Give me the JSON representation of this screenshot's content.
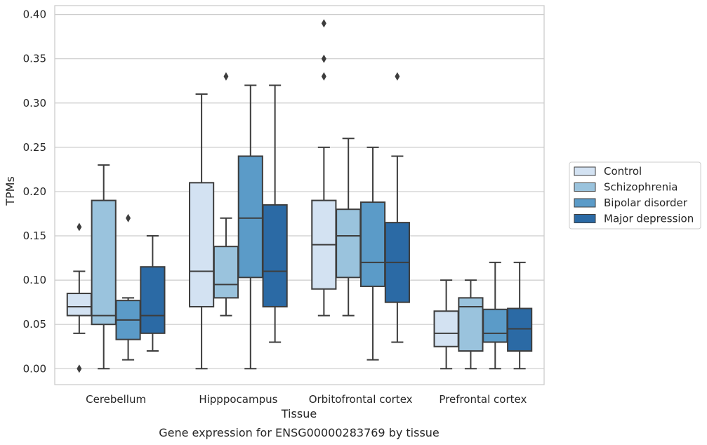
{
  "chart_data": {
    "type": "box",
    "xlabel": "Tissue",
    "ylabel": "TPMs",
    "caption": "Gene expression for ENSG00000283769 by tissue",
    "ylim": [
      -0.018,
      0.41
    ],
    "yticks": [
      "0.00",
      "0.05",
      "0.10",
      "0.15",
      "0.20",
      "0.25",
      "0.30",
      "0.35",
      "0.40"
    ],
    "grid": "horizontal",
    "legend_position": "right",
    "categories": [
      "Cerebellum",
      "Hipppocampus",
      "Orbitofrontal cortex",
      "Prefrontal cortex"
    ],
    "series": [
      {
        "name": "Control",
        "color": "#d3e2f2",
        "boxes": [
          {
            "whislo": 0.04,
            "q1": 0.06,
            "med": 0.07,
            "q3": 0.085,
            "whishi": 0.11,
            "fliers": [
              0.0,
              0.16
            ]
          },
          {
            "whislo": 0.0,
            "q1": 0.07,
            "med": 0.11,
            "q3": 0.21,
            "whishi": 0.31,
            "fliers": []
          },
          {
            "whislo": 0.06,
            "q1": 0.09,
            "med": 0.14,
            "q3": 0.19,
            "whishi": 0.25,
            "fliers": [
              0.33,
              0.35,
              0.39
            ]
          },
          {
            "whislo": 0.0,
            "q1": 0.025,
            "med": 0.04,
            "q3": 0.065,
            "whishi": 0.1,
            "fliers": []
          }
        ]
      },
      {
        "name": "Schizophrenia",
        "color": "#9ac3dd",
        "boxes": [
          {
            "whislo": 0.0,
            "q1": 0.05,
            "med": 0.06,
            "q3": 0.19,
            "whishi": 0.23,
            "fliers": []
          },
          {
            "whislo": 0.06,
            "q1": 0.08,
            "med": 0.095,
            "q3": 0.138,
            "whishi": 0.17,
            "fliers": [
              0.33
            ]
          },
          {
            "whislo": 0.06,
            "q1": 0.103,
            "med": 0.15,
            "q3": 0.18,
            "whishi": 0.26,
            "fliers": []
          },
          {
            "whislo": 0.0,
            "q1": 0.02,
            "med": 0.07,
            "q3": 0.08,
            "whishi": 0.1,
            "fliers": []
          }
        ]
      },
      {
        "name": "Bipolar disorder",
        "color": "#5b9bc8",
        "boxes": [
          {
            "whislo": 0.01,
            "q1": 0.033,
            "med": 0.055,
            "q3": 0.077,
            "whishi": 0.08,
            "fliers": [
              0.17
            ]
          },
          {
            "whislo": 0.0,
            "q1": 0.103,
            "med": 0.17,
            "q3": 0.24,
            "whishi": 0.32,
            "fliers": []
          },
          {
            "whislo": 0.01,
            "q1": 0.093,
            "med": 0.12,
            "q3": 0.188,
            "whishi": 0.25,
            "fliers": []
          },
          {
            "whislo": 0.0,
            "q1": 0.03,
            "med": 0.04,
            "q3": 0.067,
            "whishi": 0.12,
            "fliers": []
          }
        ]
      },
      {
        "name": "Major depression",
        "color": "#2b6aa5",
        "boxes": [
          {
            "whislo": 0.02,
            "q1": 0.04,
            "med": 0.06,
            "q3": 0.115,
            "whishi": 0.15,
            "fliers": []
          },
          {
            "whislo": 0.03,
            "q1": 0.07,
            "med": 0.11,
            "q3": 0.185,
            "whishi": 0.32,
            "fliers": []
          },
          {
            "whislo": 0.03,
            "q1": 0.075,
            "med": 0.12,
            "q3": 0.165,
            "whishi": 0.24,
            "fliers": [
              0.33
            ]
          },
          {
            "whislo": 0.0,
            "q1": 0.02,
            "med": 0.045,
            "q3": 0.068,
            "whishi": 0.12,
            "fliers": []
          }
        ]
      }
    ]
  }
}
